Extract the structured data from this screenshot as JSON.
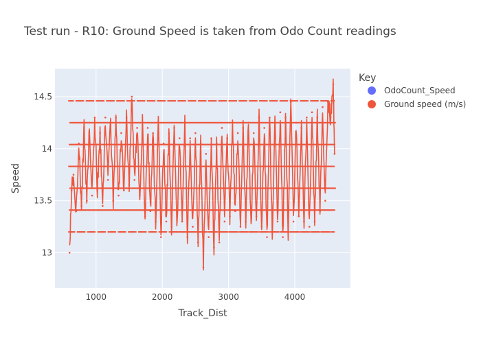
{
  "chart_data": {
    "type": "line",
    "title": "Test run - R10: Ground Speed is taken from Odo Count readings",
    "xlabel": "Track_Dist",
    "ylabel": "Speed",
    "xlim": [
      380,
      4840
    ],
    "ylim": [
      12.66,
      14.77
    ],
    "x_ticks": [
      1000,
      2000,
      3000,
      4000
    ],
    "x_tick_labels": [
      "1000",
      "2000",
      "3000",
      "4000"
    ],
    "y_ticks": [
      13,
      13.5,
      14,
      14.5
    ],
    "y_tick_labels": [
      "13",
      "13.5",
      "14",
      "14.5"
    ],
    "grid": true,
    "legend": {
      "title": "Key",
      "placement": "right",
      "items": [
        {
          "label": "OdoCount_Speed",
          "color": "#636efa"
        },
        {
          "label": "Ground speed (m/s)",
          "color": "#EF553B"
        }
      ]
    },
    "series": [
      {
        "name": "OdoCount_Speed",
        "mode": "markers",
        "color": "#636efa",
        "x": [],
        "y": []
      },
      {
        "name": "Ground speed (m/s)",
        "mode": "lines+markers",
        "color": "#EF553B",
        "x_range": [
          600,
          4600
        ],
        "y_min": 12.79,
        "y_max": 14.67,
        "quantized_levels": [
          13.2,
          13.41,
          13.62,
          13.83,
          14.04,
          14.25,
          14.46
        ],
        "x": [
          600,
          630,
          660,
          700,
          740,
          780,
          820,
          860,
          900,
          940,
          980,
          1020,
          1060,
          1100,
          1140,
          1180,
          1220,
          1260,
          1300,
          1340,
          1380,
          1420,
          1460,
          1500,
          1540,
          1580,
          1620,
          1660,
          1700,
          1740,
          1780,
          1820,
          1860,
          1900,
          1940,
          1980,
          2020,
          2060,
          2100,
          2140,
          2180,
          2220,
          2260,
          2300,
          2340,
          2380,
          2420,
          2460,
          2500,
          2540,
          2580,
          2620,
          2660,
          2700,
          2740,
          2780,
          2820,
          2860,
          2900,
          2940,
          2980,
          3020,
          3060,
          3100,
          3140,
          3180,
          3220,
          3260,
          3300,
          3340,
          3380,
          3420,
          3460,
          3500,
          3540,
          3580,
          3620,
          3660,
          3700,
          3740,
          3780,
          3820,
          3860,
          3900,
          3940,
          3980,
          4020,
          4060,
          4100,
          4140,
          4180,
          4220,
          4260,
          4300,
          4340,
          4380,
          4420,
          4460,
          4500,
          4540,
          4580,
          4600
        ],
        "y": [
          13.0,
          13.6,
          13.75,
          13.4,
          14.05,
          13.45,
          14.2,
          13.5,
          14.25,
          13.55,
          14.3,
          13.6,
          14.15,
          13.45,
          14.3,
          13.7,
          14.25,
          13.5,
          14.3,
          13.55,
          14.15,
          13.6,
          14.3,
          13.65,
          14.5,
          13.7,
          14.2,
          13.55,
          14.25,
          13.35,
          14.2,
          13.4,
          14.15,
          13.3,
          14.25,
          13.15,
          14.05,
          13.3,
          14.15,
          13.25,
          14.2,
          13.2,
          14.1,
          13.3,
          14.25,
          13.15,
          14.1,
          13.25,
          14.15,
          13.1,
          14.05,
          12.86,
          13.95,
          13.15,
          14.1,
          13.05,
          14.05,
          13.1,
          14.2,
          13.3,
          14.1,
          13.35,
          14.25,
          13.4,
          14.15,
          13.25,
          14.2,
          13.3,
          14.25,
          13.2,
          14.15,
          13.35,
          14.3,
          13.25,
          14.2,
          13.15,
          14.3,
          13.2,
          14.25,
          13.3,
          14.35,
          13.15,
          14.3,
          13.2,
          14.45,
          13.3,
          14.25,
          13.35,
          14.2,
          13.3,
          14.3,
          13.25,
          14.35,
          13.3,
          14.3,
          13.4,
          14.4,
          13.5,
          14.45,
          14.3,
          14.62,
          13.95
        ]
      }
    ]
  }
}
